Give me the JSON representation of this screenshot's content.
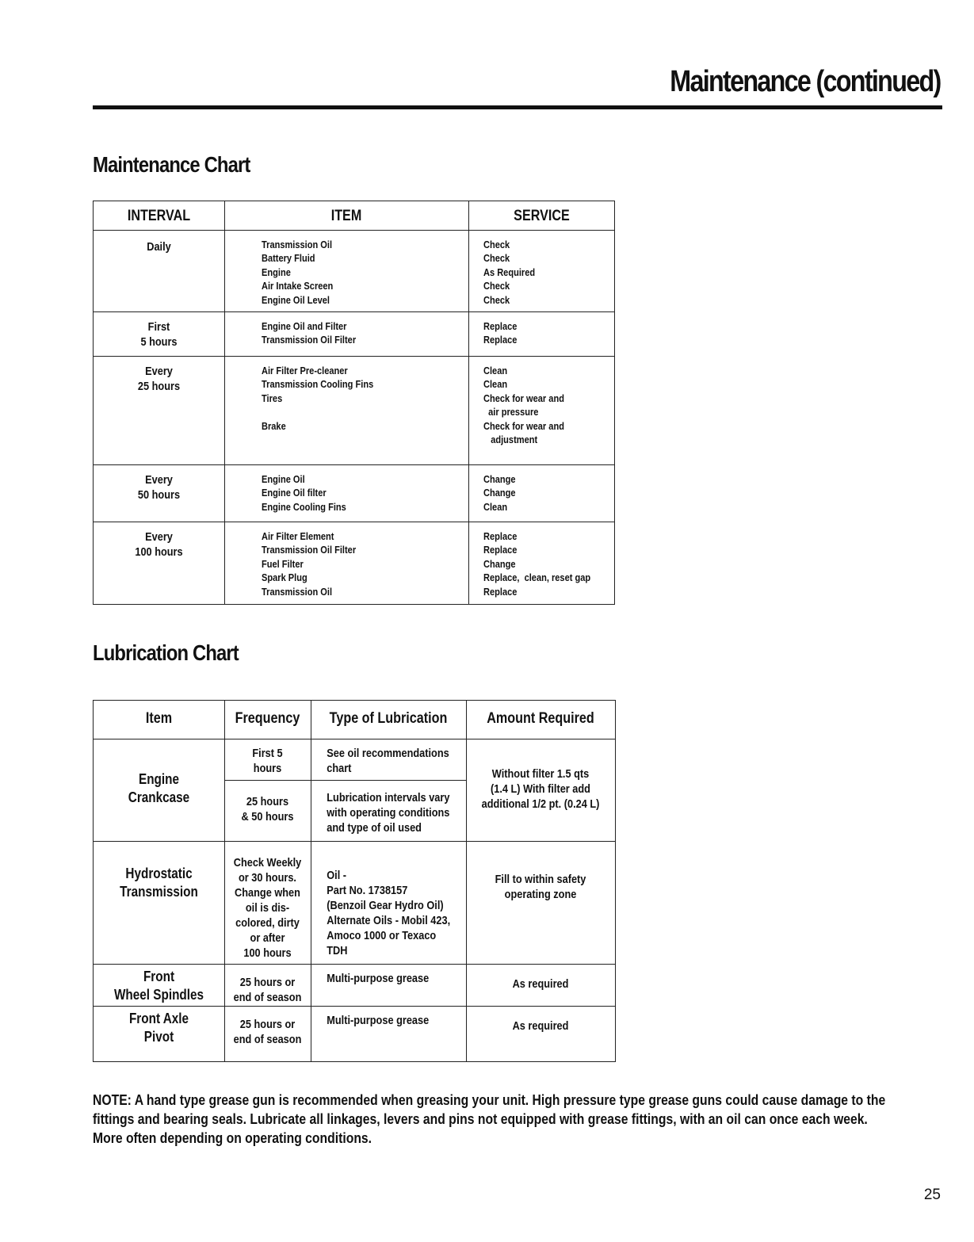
{
  "header": {
    "title": "Maintenance (continued)"
  },
  "maintenance": {
    "title": "Maintenance Chart",
    "columns": [
      "INTERVAL",
      "ITEM",
      "SERVICE"
    ],
    "rows": [
      {
        "interval": [
          "Daily"
        ],
        "items": [
          "Transmission Oil",
          "Battery Fluid",
          "Engine",
          "Air Intake Screen",
          "Engine Oil Level"
        ],
        "services": [
          "Check",
          "Check",
          "As Required",
          "Check",
          "Check"
        ]
      },
      {
        "interval": [
          "First",
          "5 hours"
        ],
        "items": [
          "Engine Oil and Filter",
          "Transmission Oil Filter"
        ],
        "services": [
          "Replace",
          "Replace"
        ]
      },
      {
        "interval": [
          "Every",
          "25 hours"
        ],
        "items": [
          "Air Filter Pre-cleaner",
          "Transmission Cooling Fins",
          "Tires",
          "",
          "Brake"
        ],
        "services": [
          "Clean",
          "Clean",
          "Check for wear and",
          "  air pressure",
          "Check for wear and",
          "   adjustment"
        ]
      },
      {
        "interval": [
          "Every",
          "50 hours"
        ],
        "items": [
          "Engine Oil",
          "Engine Oil filter",
          "Engine Cooling Fins"
        ],
        "services": [
          "Change",
          "Change",
          "Clean"
        ]
      },
      {
        "interval": [
          "Every",
          "100 hours"
        ],
        "items": [
          "Air Filter Element",
          "Transmission Oil Filter",
          "Fuel Filter",
          "Spark Plug",
          "Transmission Oil"
        ],
        "services": [
          "Replace",
          "Replace",
          "Change",
          "Replace,  clean, reset gap",
          "Replace"
        ]
      }
    ]
  },
  "lubrication": {
    "title": "Lubrication Chart",
    "columns": [
      "Item",
      "Frequency",
      "Type of Lubrication",
      "Amount Required"
    ],
    "engine": {
      "item": [
        "Engine",
        "Crankcase"
      ],
      "freq1": [
        "First 5",
        "hours"
      ],
      "type1": [
        "See oil recommendations",
        " chart"
      ],
      "freq2": [
        "25 hours",
        "& 50 hours"
      ],
      "type2": [
        "Lubrication intervals vary",
        "with operating conditions",
        "and type of oil used"
      ],
      "amount": [
        "Without filter 1.5 qts",
        "(1.4 L) With filter add",
        "additional 1/2 pt. (0.24 L)"
      ]
    },
    "hydro": {
      "item": [
        "Hydrostatic",
        "Transmission"
      ],
      "freq": [
        "Check Weekly",
        "or 30 hours.",
        "Change when",
        "oil is dis-",
        "colored, dirty",
        "or after",
        "100 hours"
      ],
      "type": [
        "Oil  -",
        "Part No. 1738157",
        "(Benzoil Gear Hydro Oil)",
        "Alternate Oils - Mobil 423,",
        "Amoco 1000 or Texaco TDH"
      ],
      "amount": [
        "Fill to within safety",
        "operating zone"
      ]
    },
    "spindles": {
      "item": [
        "Front",
        "Wheel Spindles"
      ],
      "freq": [
        "25 hours or",
        "end of season"
      ],
      "type": [
        "Multi-purpose grease"
      ],
      "amount": [
        "As required"
      ]
    },
    "axle": {
      "item": [
        "Front Axle",
        "Pivot"
      ],
      "freq": [
        "25 hours or",
        "end of season"
      ],
      "type": [
        "Multi-purpose grease"
      ],
      "amount": [
        "As required"
      ]
    }
  },
  "note": "NOTE:  A hand type grease gun is recommended when greasing your unit.  High pressure type grease guns could cause damage to the fittings and bearing seals.  Lubricate all linkages, levers and pins not equipped with grease fittings, with an oil can once each week.  More often depending on operating conditions.",
  "page_number": "25"
}
